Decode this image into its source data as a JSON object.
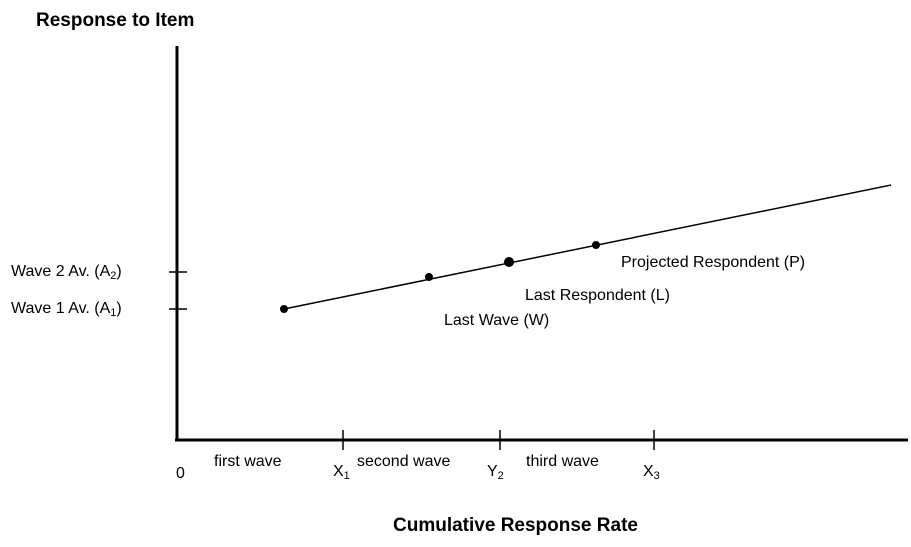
{
  "y_axis_title": "Response to Item",
  "x_axis_title": "Cumulative Response Rate",
  "y_ticks": [
    {
      "label": "Wave 2 Av. (A",
      "sub": "2",
      "close": ")"
    },
    {
      "label": "Wave 1 Av. (A",
      "sub": "1",
      "close": ")"
    }
  ],
  "origin_label": "0",
  "x_ticks": [
    {
      "label": "X",
      "sub": "1"
    },
    {
      "label": "Y",
      "sub": "2"
    },
    {
      "label": "X",
      "sub": "3"
    }
  ],
  "wave_labels": [
    "first wave",
    "second wave",
    "third wave"
  ],
  "points": {
    "last_wave": "Last Wave (W)",
    "last_respondent": "Last Respondent (L)",
    "projected_respondent": "Projected Respondent (P)"
  },
  "line_color": "#000000"
}
